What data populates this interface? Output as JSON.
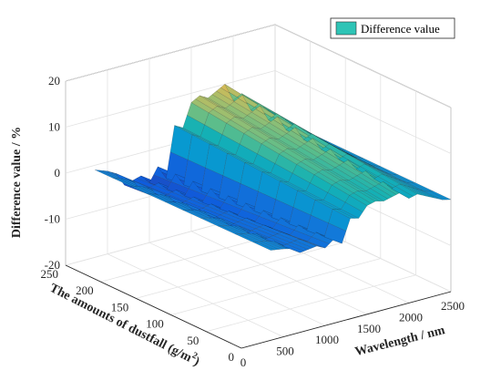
{
  "chart_data": {
    "type": "surface",
    "title": "",
    "xlabel": "Wavelength / nm",
    "ylabel": "The amounts of dustfall (g/m",
    "ylabel_sup": "2",
    "ylabel_end": ")",
    "zlabel": "Difference value / %",
    "xlim": [
      0,
      2500
    ],
    "ylim": [
      0,
      250
    ],
    "zlim": [
      -20,
      20
    ],
    "xticks": [
      "0",
      "500",
      "1000",
      "1500",
      "2000",
      "2500"
    ],
    "yticks": [
      "0",
      "50",
      "100",
      "150",
      "200",
      "250"
    ],
    "zticks": [
      "-20",
      "-10",
      "0",
      "10",
      "20"
    ],
    "grid": true,
    "legend": {
      "position": "top-right",
      "entries": [
        "Difference value"
      ],
      "swatch_color": "#2ec4b6"
    },
    "colormap": "parula",
    "wavelength_profile": {
      "x": [
        350,
        500,
        600,
        700,
        900,
        1000,
        1100,
        1200,
        1300,
        1400,
        1500,
        1600,
        1700,
        1800,
        1900,
        2000,
        2100,
        2200,
        2300,
        2400,
        2500
      ],
      "z_at_max_dustfall": [
        -1,
        -2,
        -3,
        -6,
        -5,
        -7,
        -4,
        -7,
        4,
        3,
        8,
        9,
        8,
        9,
        10,
        6,
        7,
        5,
        3,
        1,
        0
      ]
    },
    "dustfall_y": [
      0,
      25,
      50,
      75,
      100,
      125,
      150,
      175,
      200,
      225,
      250
    ]
  }
}
